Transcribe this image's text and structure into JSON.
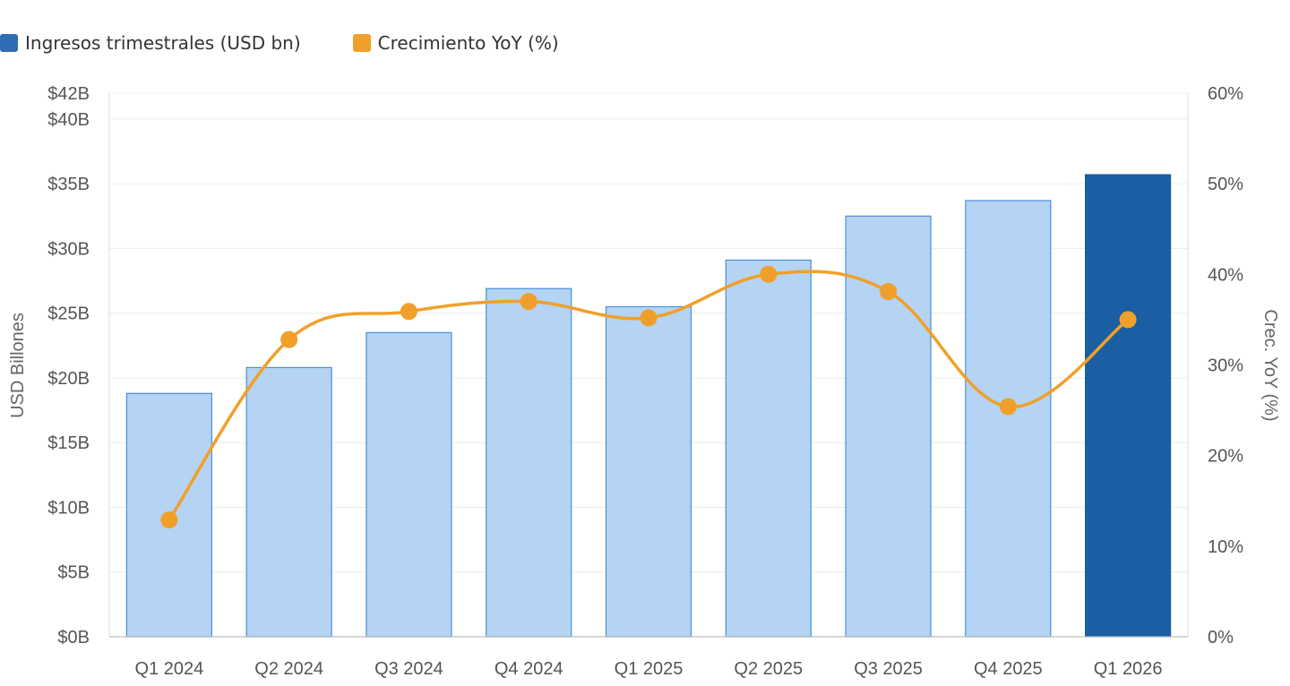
{
  "chart_data": {
    "type": "bar",
    "categories": [
      "Q1 2024",
      "Q2 2024",
      "Q3 2024",
      "Q4 2024",
      "Q1 2025",
      "Q2 2025",
      "Q3 2025",
      "Q4 2025",
      "Q1 2026"
    ],
    "series": [
      {
        "name": "Ingresos trimestrales (USD bn)",
        "type": "bar",
        "axis": "left",
        "values": [
          18.8,
          20.8,
          23.5,
          26.9,
          25.5,
          29.1,
          32.5,
          33.7,
          35.7
        ],
        "color": "#b5d3f2",
        "border": "#4a90d9",
        "highlight_index": 8,
        "highlight_color": "#1a5ea3"
      },
      {
        "name": "Crecimiento YoY (%)",
        "type": "line",
        "axis": "right",
        "values": [
          12.9,
          32.8,
          35.9,
          37.0,
          35.2,
          40.0,
          38.1,
          25.4,
          35.0
        ],
        "color": "#f0a02a"
      }
    ],
    "legend": {
      "bar_label": "Ingresos trimestrales (USD bn)",
      "line_label": "Crecimiento YoY (%)",
      "bar_swatch": "#2f6db5",
      "line_swatch": "#f0a02a"
    },
    "ylabel": "USD Billones",
    "y2label": "Crec. YoY (%)",
    "ylim": [
      0,
      42
    ],
    "y2lim": [
      0,
      60
    ],
    "yticks": [
      0,
      5,
      10,
      15,
      20,
      25,
      30,
      35,
      40,
      42
    ],
    "ytick_labels": [
      "$0B",
      "$5B",
      "$10B",
      "$15B",
      "$20B",
      "$25B",
      "$30B",
      "$35B",
      "$40B",
      "$42B"
    ],
    "y2ticks": [
      0,
      10,
      20,
      30,
      40,
      50,
      60
    ],
    "y2tick_labels": [
      "0%",
      "10%",
      "20%",
      "30%",
      "40%",
      "50%",
      "60%"
    ],
    "grid": true
  }
}
